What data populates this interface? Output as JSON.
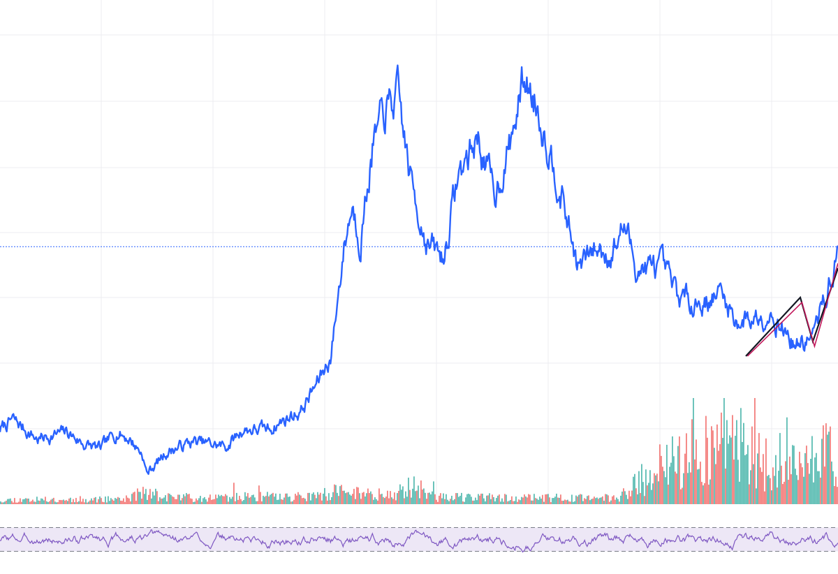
{
  "colors": {
    "background": "#ffffff",
    "grid": "#ececf0",
    "price_line": "#2962ff",
    "last_price_line": "#2962ff",
    "volume_up": "#26a69a",
    "volume_down": "#ef5350",
    "rsi_line": "#7e57c2",
    "rsi_band": "#ede7f6",
    "rsi_bounds": "#787b86",
    "trend_dark": "#131722",
    "trend_magenta": "#c2185b"
  },
  "chart_data": [
    {
      "type": "line",
      "name": "price",
      "title": "",
      "xlabel": "",
      "ylabel": "",
      "grid": true,
      "x_range": [
        0,
        1000
      ],
      "ylim": [
        0,
        100
      ],
      "reference_line": {
        "name": "last-price",
        "value": 52.4
      },
      "keypoints": [
        [
          0,
          15
        ],
        [
          15,
          17
        ],
        [
          45,
          13
        ],
        [
          80,
          14.5
        ],
        [
          100,
          12
        ],
        [
          120,
          11
        ],
        [
          140,
          14.5
        ],
        [
          155,
          13
        ],
        [
          170,
          10
        ],
        [
          175,
          6
        ],
        [
          200,
          10.5
        ],
        [
          230,
          12.5
        ],
        [
          270,
          11.5
        ],
        [
          290,
          15
        ],
        [
          320,
          15
        ],
        [
          360,
          19
        ],
        [
          380,
          25
        ],
        [
          395,
          30
        ],
        [
          410,
          52
        ],
        [
          420,
          61
        ],
        [
          430,
          54
        ],
        [
          445,
          73
        ],
        [
          460,
          80
        ],
        [
          475,
          83
        ],
        [
          490,
          66
        ],
        [
          510,
          53
        ],
        [
          530,
          50
        ],
        [
          545,
          66
        ],
        [
          570,
          75
        ],
        [
          590,
          63
        ],
        [
          610,
          74
        ],
        [
          625,
          87
        ],
        [
          640,
          82
        ],
        [
          665,
          67
        ],
        [
          690,
          48
        ],
        [
          710,
          52
        ],
        [
          730,
          51
        ],
        [
          745,
          57
        ],
        [
          760,
          48
        ],
        [
          790,
          48
        ],
        [
          810,
          42
        ],
        [
          840,
          41
        ],
        [
          860,
          43
        ],
        [
          880,
          37
        ],
        [
          900,
          38
        ],
        [
          920,
          39
        ],
        [
          950,
          32
        ],
        [
          970,
          34
        ],
        [
          990,
          45
        ],
        [
          1000,
          51
        ]
      ],
      "seed": 7,
      "points": 1000,
      "overlays": [
        {
          "name": "trend-line-dark",
          "points": [
            [
              890,
              30
            ],
            [
              955,
              42
            ],
            [
              970,
              33
            ],
            [
              1000,
              48
            ]
          ]
        },
        {
          "name": "trend-line-magenta",
          "points": [
            [
              892,
              30
            ],
            [
              957,
              41
            ],
            [
              972,
              32
            ],
            [
              1000,
              49
            ]
          ]
        }
      ]
    },
    {
      "type": "bar",
      "name": "volume",
      "grid": false,
      "x_range": [
        0,
        1000
      ],
      "ylim": [
        0,
        100
      ],
      "bars": 600,
      "seed": 11,
      "profile": [
        [
          0,
          5
        ],
        [
          150,
          6
        ],
        [
          170,
          14
        ],
        [
          200,
          8
        ],
        [
          380,
          9
        ],
        [
          400,
          15
        ],
        [
          470,
          10
        ],
        [
          490,
          25
        ],
        [
          520,
          8
        ],
        [
          740,
          7
        ],
        [
          750,
          17
        ],
        [
          790,
          45
        ],
        [
          870,
          80
        ],
        [
          930,
          35
        ],
        [
          970,
          55
        ],
        [
          990,
          60
        ],
        [
          1000,
          10
        ]
      ],
      "up_down_mix": 0.5
    },
    {
      "type": "line",
      "name": "rsi",
      "grid": false,
      "x_range": [
        0,
        1000
      ],
      "ylim": [
        0,
        100
      ],
      "band": [
        30,
        70
      ],
      "points": 1000,
      "seed": 3,
      "mean": 50,
      "amplitude": 28
    }
  ]
}
